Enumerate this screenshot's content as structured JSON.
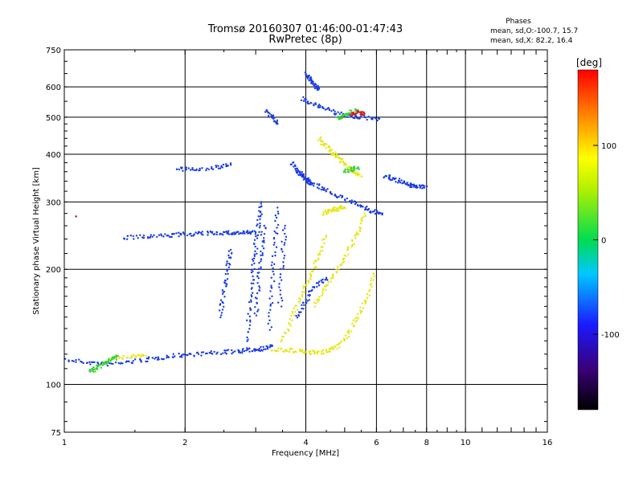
{
  "chart_data": {
    "type": "scatter",
    "title": "Tromsø 20160307 01:46:00-01:47:43",
    "subtitle": "RwPretec (8p)",
    "xlabel": "Frequency [MHz]",
    "ylabel": "Stationary phase Virtual Height [km]",
    "x_scale": "log2",
    "y_scale": "log",
    "xlim": [
      1,
      16
    ],
    "ylim": [
      75,
      750
    ],
    "x_ticks": [
      1,
      2,
      4,
      6,
      8,
      10,
      16
    ],
    "x_tick_labels": [
      "1",
      "2",
      "4",
      "6",
      "8",
      "10",
      "16"
    ],
    "y_ticks": [
      75,
      100,
      200,
      300,
      400,
      500,
      600,
      750
    ],
    "y_tick_labels": [
      "75",
      "100",
      "200",
      "300",
      "400",
      "500",
      "600",
      "750"
    ],
    "grid": true,
    "phases_box": {
      "title": "Phases",
      "line1": "mean, sd,O:-100.7, 15.7",
      "line2": "mean, sd,X:  82.2, 16.4"
    },
    "colorbar": {
      "unit": "[deg]",
      "range": [
        -180,
        180
      ],
      "ticks": [
        100,
        0,
        -100
      ],
      "tick_labels": [
        "100",
        "0",
        "-100"
      ]
    },
    "series": [
      {
        "name": "O",
        "color": "#1a3ce6",
        "phase_deg": -100,
        "traces": [
          {
            "x": [
              1.0,
              1.15,
              1.3,
              1.5,
              1.7,
              1.9,
              2.1,
              2.4,
              2.7,
              2.9,
              3.1,
              3.3
            ],
            "y": [
              116,
              114,
              113,
              115,
              117,
              119,
              120,
              121,
              122,
              123,
              124,
              126
            ]
          },
          {
            "x": [
              1.4,
              1.6,
              1.8,
              2.0,
              2.2,
              2.4,
              2.6,
              2.8,
              3.0
            ],
            "y": [
              242,
              243,
              245,
              247,
              248,
              249,
              249,
              249,
              250
            ]
          },
          {
            "x": [
              2.85,
              2.9,
              2.95,
              3.0,
              3.05,
              3.1
            ],
            "y": [
              130,
              160,
              195,
              230,
              265,
              300
            ]
          },
          {
            "x": [
              3.0,
              3.05,
              3.1,
              3.15
            ],
            "y": [
              150,
              185,
              220,
              260
            ]
          },
          {
            "x": [
              3.25,
              3.3,
              3.35,
              3.4
            ],
            "y": [
              140,
              180,
              230,
              290
            ]
          },
          {
            "x": [
              3.45,
              3.5,
              3.55
            ],
            "y": [
              160,
              210,
              260
            ]
          },
          {
            "x": [
              2.45,
              2.5,
              2.55,
              2.6
            ],
            "y": [
              150,
              175,
              200,
              225
            ]
          },
          {
            "x": [
              3.8,
              4.0,
              4.3,
              4.6,
              5.0,
              5.4,
              5.8,
              6.2
            ],
            "y": [
              360,
              345,
              330,
              318,
              305,
              295,
              285,
              278
            ]
          },
          {
            "x": [
              3.9,
              4.2,
              4.6,
              5.0,
              5.5,
              6.1
            ],
            "y": [
              560,
              540,
              520,
              505,
              500,
              495
            ]
          },
          {
            "x": [
              6.3,
              6.6,
              7.0,
              7.3,
              7.6,
              8.0
            ],
            "y": [
              350,
              345,
              338,
              332,
              328,
              330
            ]
          },
          {
            "x": [
              3.2,
              3.3,
              3.4
            ],
            "y": [
              520,
              500,
              480
            ]
          },
          {
            "x": [
              3.7,
              3.85,
              4.0,
              4.1
            ],
            "y": [
              380,
              360,
              345,
              335
            ]
          },
          {
            "x": [
              4.0,
              4.1,
              4.2,
              4.3
            ],
            "y": [
              650,
              630,
              610,
              590
            ]
          },
          {
            "x": [
              1.9,
              2.1,
              2.4,
              2.6
            ],
            "y": [
              365,
              365,
              370,
              375
            ]
          },
          {
            "x": [
              3.8,
              4.0,
              4.2,
              4.5
            ],
            "y": [
              150,
              165,
              180,
              190
            ]
          }
        ]
      },
      {
        "name": "X",
        "color": "#e6e614",
        "phase_deg": 82,
        "traces": [
          {
            "x": [
              3.3,
              3.6,
              3.9,
              4.2,
              4.5,
              4.8,
              5.1,
              5.4,
              5.7,
              5.9
            ],
            "y": [
              123,
              123,
              122,
              121,
              122,
              125,
              135,
              150,
              170,
              195
            ]
          },
          {
            "x": [
              3.5,
              3.7,
              3.9,
              4.1,
              4.3,
              4.5
            ],
            "y": [
              130,
              150,
              170,
              190,
              215,
              245
            ]
          },
          {
            "x": [
              4.2,
              4.5,
              4.8,
              5.1,
              5.4,
              5.6
            ],
            "y": [
              160,
              180,
              200,
              225,
              250,
              280
            ]
          },
          {
            "x": [
              4.3,
              4.5,
              4.7,
              4.9,
              5.1,
              5.3,
              5.5
            ],
            "y": [
              440,
              420,
              400,
              385,
              370,
              360,
              350
            ]
          },
          {
            "x": [
              1.3,
              1.45,
              1.6
            ],
            "y": [
              116,
              118,
              119
            ]
          },
          {
            "x": [
              4.4,
              4.6,
              4.8,
              5.0
            ],
            "y": [
              280,
              285,
              288,
              290
            ]
          }
        ]
      },
      {
        "name": "",
        "color": "#3cd23c",
        "phase_deg": 10,
        "traces": [
          {
            "x": [
              1.15,
              1.2,
              1.25,
              1.3,
              1.35
            ],
            "y": [
              108,
              110,
              113,
              116,
              118
            ]
          },
          {
            "x": [
              4.8,
              5.0,
              5.2,
              5.4
            ],
            "y": [
              495,
              505,
              515,
              520
            ]
          },
          {
            "x": [
              5.0,
              5.2,
              5.4
            ],
            "y": [
              360,
              365,
              370
            ]
          }
        ]
      },
      {
        "name": "",
        "color": "#d21e1e",
        "phase_deg": 160,
        "traces": [
          {
            "x": [
              5.2,
              5.4,
              5.6
            ],
            "y": [
              505,
              515,
              510
            ]
          },
          {
            "x": [
              1.07
            ],
            "y": [
              275
            ]
          }
        ]
      }
    ]
  }
}
